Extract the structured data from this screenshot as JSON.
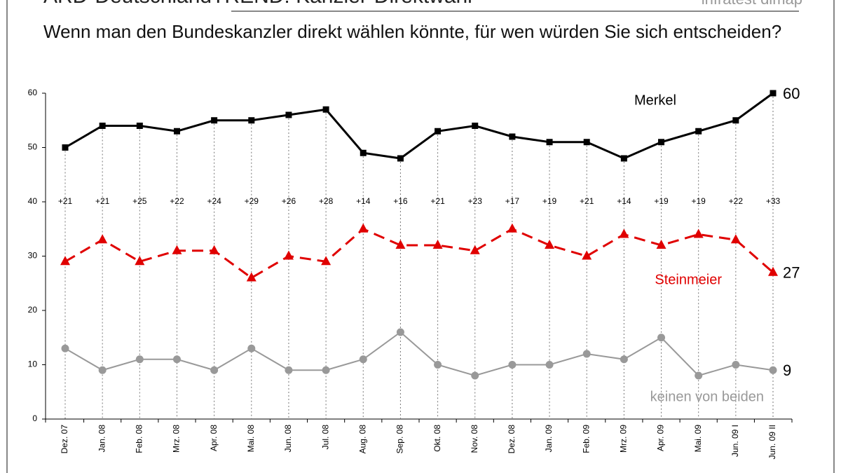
{
  "chart_data": {
    "type": "line",
    "title": "ARD-DeutschlandTREND: Kanzler-Direktwahl",
    "source": "infratest dimap",
    "subtitle": "Wenn man den Bundeskanzler direkt wählen könnte, für wen würden Sie sich entscheiden?",
    "categories": [
      "Dez. 07",
      "Jan. 08",
      "Feb. 08",
      "Mrz. 08",
      "Apr. 08",
      "Mai. 08",
      "Jun. 08",
      "Jul. 08",
      "Aug. 08",
      "Sep. 08",
      "Okt. 08",
      "Nov. 08",
      "Dez. 08",
      "Jan. 09",
      "Feb. 09",
      "Mrz. 09",
      "Apr. 09",
      "Mai. 09",
      "Jun. 09 I",
      "Jun. 09 II"
    ],
    "series": [
      {
        "name": "Merkel",
        "color": "#000000",
        "marker": "square",
        "dashed": false,
        "values": [
          50,
          54,
          54,
          53,
          55,
          55,
          56,
          57,
          49,
          48,
          53,
          54,
          52,
          51,
          51,
          48,
          51,
          53,
          55,
          60
        ]
      },
      {
        "name": "Steinmeier",
        "color": "#e00000",
        "marker": "triangle",
        "dashed": true,
        "values": [
          29,
          33,
          29,
          31,
          31,
          26,
          30,
          29,
          35,
          32,
          32,
          31,
          35,
          32,
          30,
          34,
          32,
          34,
          33,
          27
        ]
      },
      {
        "name": "keinen von beiden",
        "color": "#999999",
        "marker": "circle",
        "dashed": false,
        "values": [
          13,
          9,
          11,
          11,
          9,
          13,
          9,
          9,
          11,
          16,
          10,
          8,
          10,
          10,
          12,
          11,
          15,
          8,
          10,
          9
        ]
      }
    ],
    "differences": {
      "values": [
        21,
        21,
        25,
        22,
        24,
        29,
        26,
        28,
        14,
        16,
        21,
        23,
        17,
        19,
        21,
        14,
        19,
        19,
        22,
        33
      ],
      "value_labels": [
        "+21",
        "+21",
        "+25",
        "+22",
        "+24",
        "+29",
        "+26",
        "+28",
        "+14",
        "+16",
        "+21",
        "+23",
        "+17",
        "+19",
        "+21",
        "+14",
        "+19",
        "+19",
        "+22",
        "+33"
      ]
    },
    "ylim": [
      0,
      60
    ],
    "yticks": [
      0,
      10,
      20,
      30,
      40,
      50,
      60
    ]
  }
}
